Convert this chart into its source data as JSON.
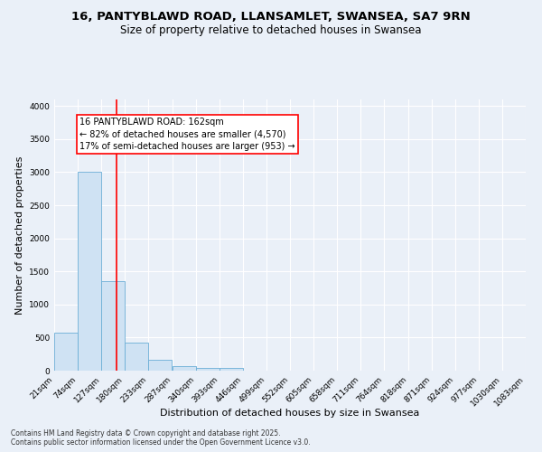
{
  "title_line1": "16, PANTYBLAWD ROAD, LLANSAMLET, SWANSEA, SA7 9RN",
  "title_line2": "Size of property relative to detached houses in Swansea",
  "xlabel": "Distribution of detached houses by size in Swansea",
  "ylabel": "Number of detached properties",
  "bin_labels": [
    "21sqm",
    "74sqm",
    "127sqm",
    "180sqm",
    "233sqm",
    "287sqm",
    "340sqm",
    "393sqm",
    "446sqm",
    "499sqm",
    "552sqm",
    "605sqm",
    "658sqm",
    "711sqm",
    "764sqm",
    "818sqm",
    "871sqm",
    "924sqm",
    "977sqm",
    "1030sqm",
    "1083sqm"
  ],
  "bar_heights": [
    580,
    3000,
    1350,
    430,
    160,
    70,
    40,
    35,
    0,
    0,
    0,
    0,
    0,
    0,
    0,
    0,
    0,
    0,
    0,
    0
  ],
  "bin_edges": [
    21,
    74,
    127,
    180,
    233,
    287,
    340,
    393,
    446,
    499,
    552,
    605,
    658,
    711,
    764,
    818,
    871,
    924,
    977,
    1030,
    1083
  ],
  "bar_color": "#cfe2f3",
  "bar_edgecolor": "#6baed6",
  "background_color": "#eaf0f8",
  "grid_color": "#ffffff",
  "red_line_x": 162,
  "annotation_text": "16 PANTYBLAWD ROAD: 162sqm\n← 82% of detached houses are smaller (4,570)\n17% of semi-detached houses are larger (953) →",
  "ylim": [
    0,
    4100
  ],
  "yticks": [
    0,
    500,
    1000,
    1500,
    2000,
    2500,
    3000,
    3500,
    4000
  ],
  "footer_line1": "Contains HM Land Registry data © Crown copyright and database right 2025.",
  "footer_line2": "Contains public sector information licensed under the Open Government Licence v3.0.",
  "title_fontsize": 9.5,
  "subtitle_fontsize": 8.5,
  "tick_fontsize": 6.5,
  "ylabel_fontsize": 8,
  "xlabel_fontsize": 8,
  "footer_fontsize": 5.5,
  "annotation_fontsize": 7
}
